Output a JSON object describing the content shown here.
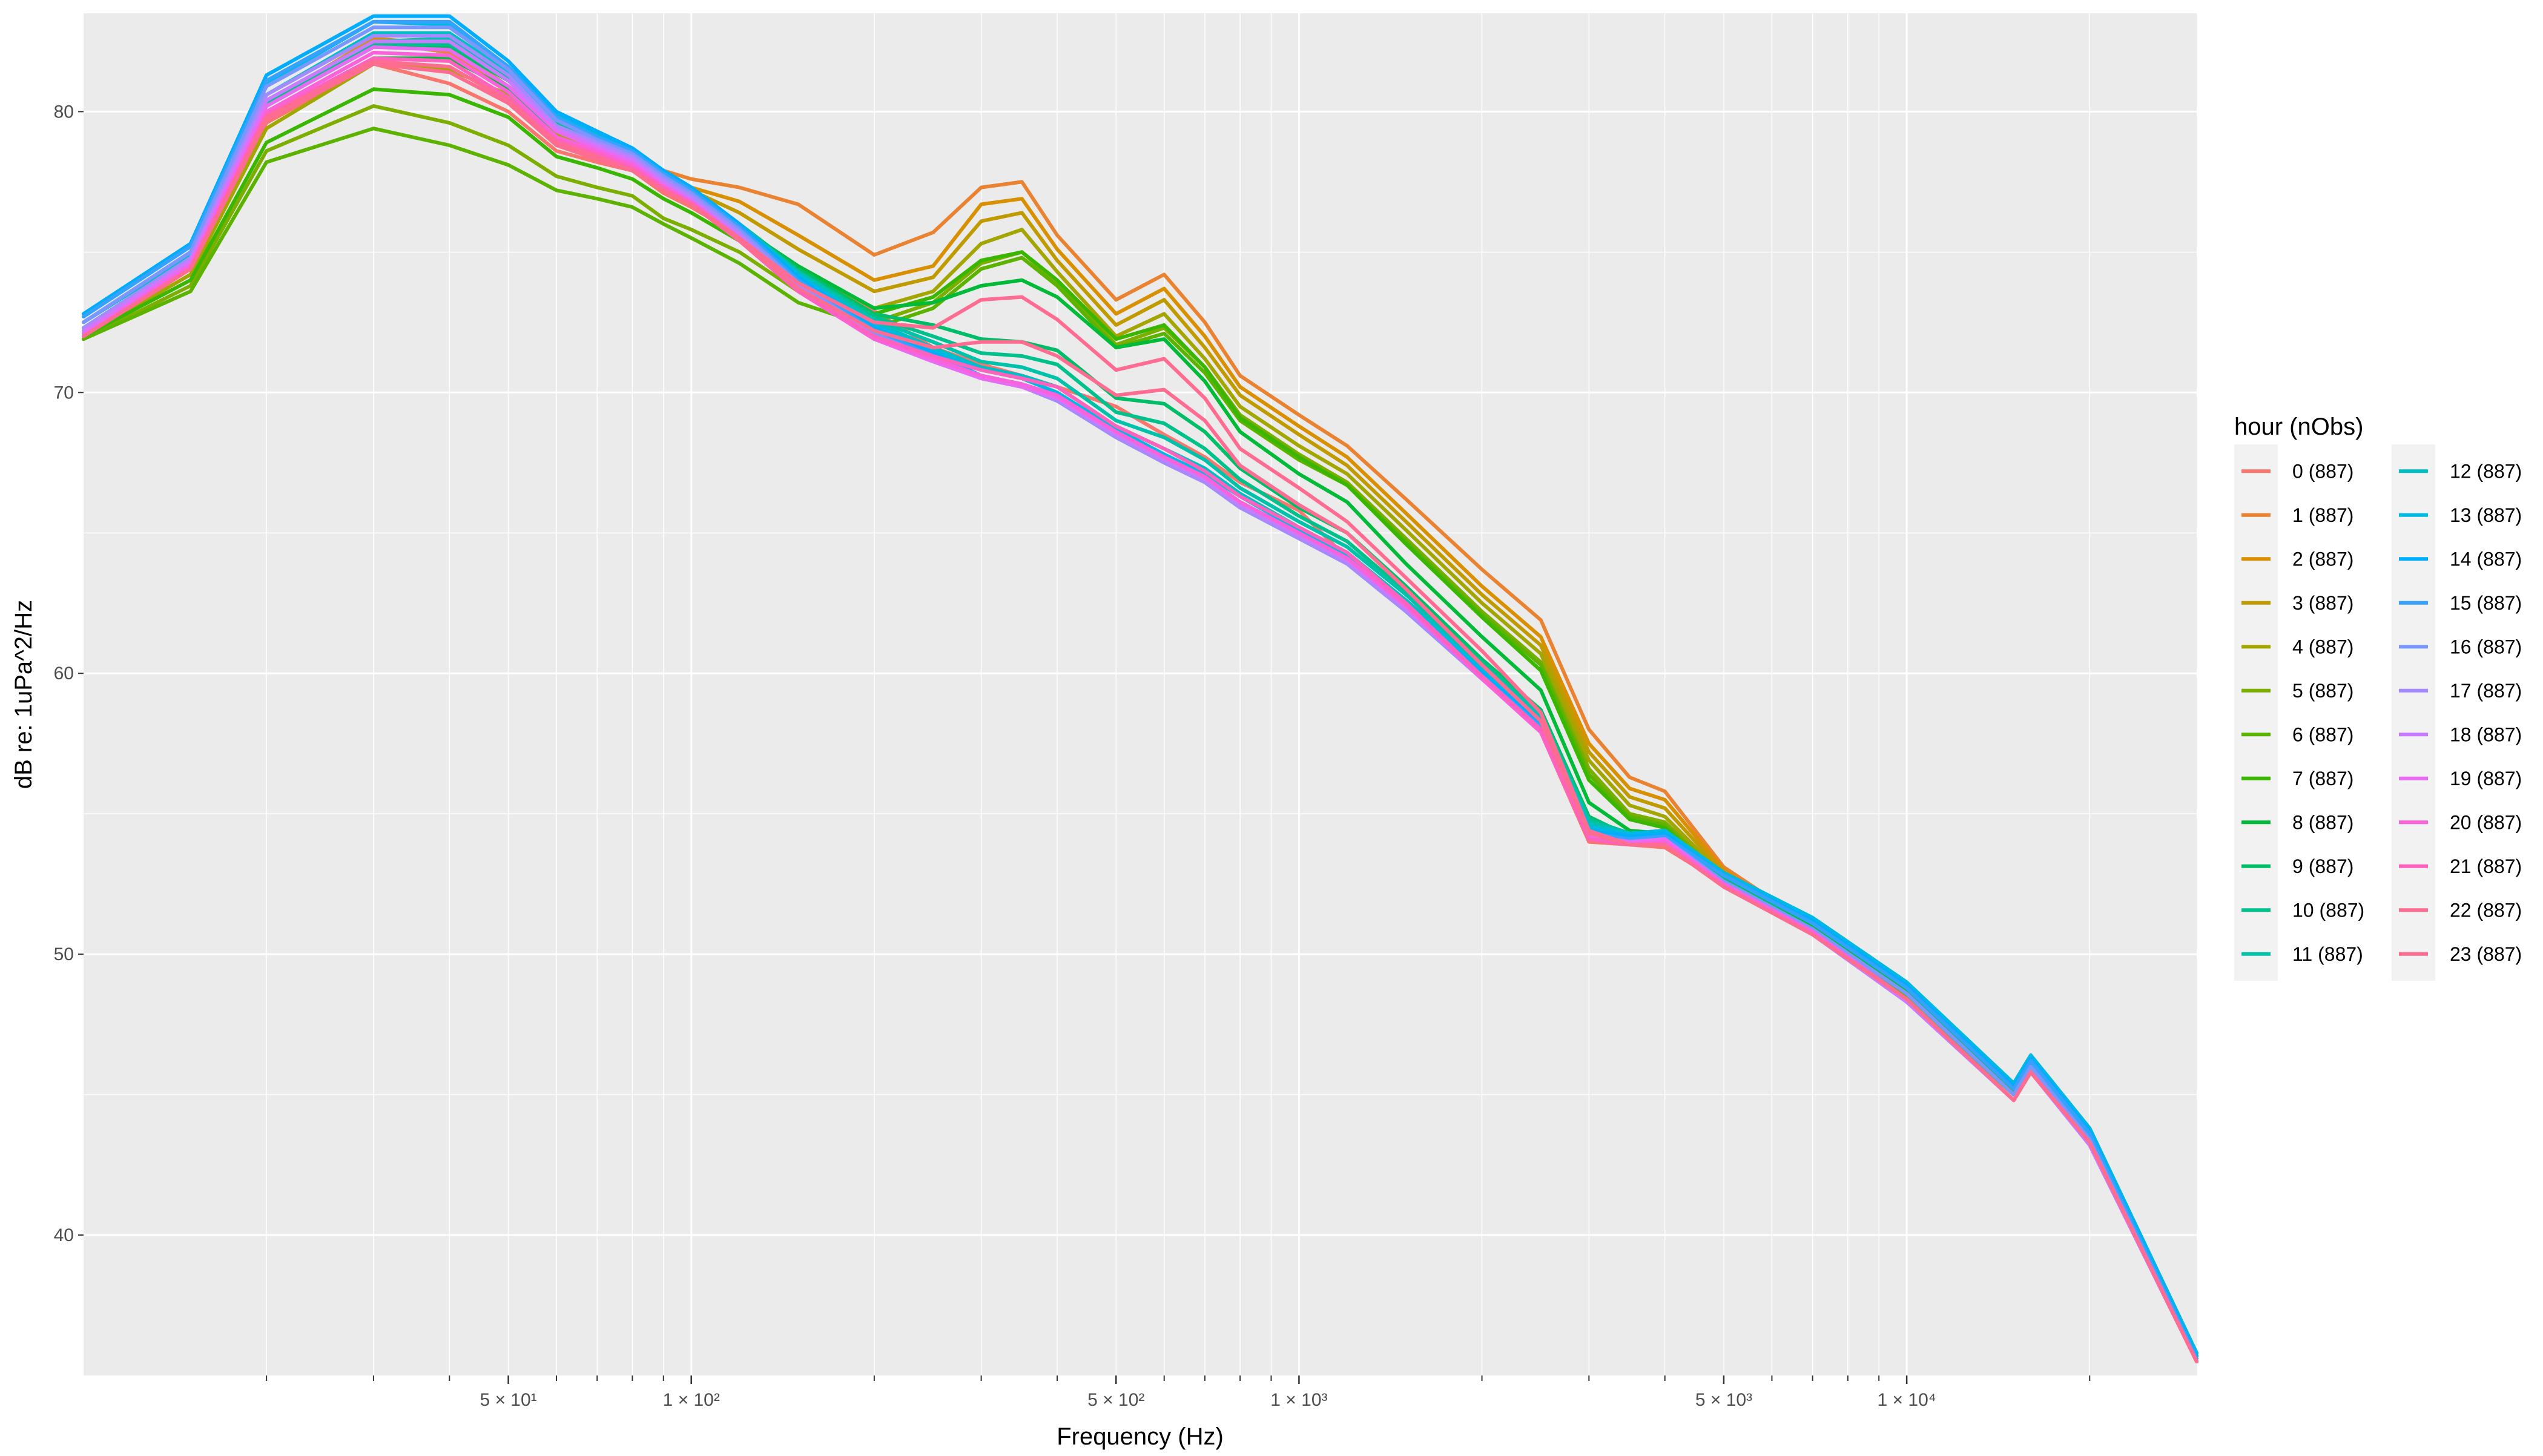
{
  "chart_data": {
    "type": "line",
    "xlabel": "Frequency (Hz)",
    "ylabel": "dB re: 1uPa^2/Hz",
    "x_scale": "log",
    "xlim": [
      10,
      30000
    ],
    "ylim": [
      35,
      83.5
    ],
    "x_ticks": [
      {
        "value": 50,
        "label": "5 × 10¹"
      },
      {
        "value": 100,
        "label": "1 × 10²"
      },
      {
        "value": 500,
        "label": "5 × 10²"
      },
      {
        "value": 1000,
        "label": "1 × 10³"
      },
      {
        "value": 5000,
        "label": "5 × 10³"
      },
      {
        "value": 10000,
        "label": "1 × 10⁴"
      }
    ],
    "y_ticks": [
      40,
      50,
      60,
      70,
      80
    ],
    "grid": true,
    "legend": {
      "title": "hour (nObs)",
      "placement": "right",
      "columns": 2
    },
    "series_frequencies": [
      10,
      15,
      20,
      30,
      40,
      50,
      60,
      70,
      80,
      90,
      100,
      120,
      150,
      200,
      250,
      300,
      350,
      400,
      500,
      600,
      700,
      800,
      1000,
      1200,
      1500,
      2000,
      2500,
      3000,
      3500,
      4000,
      5000,
      7000,
      10000,
      15000,
      16000,
      20000,
      30000
    ],
    "series": [
      {
        "name": "0 (887)",
        "color": "#F8766D",
        "values": [
          72.0,
          74.5,
          79.6,
          81.7,
          81.0,
          80.0,
          78.6,
          78.2,
          77.9,
          77.1,
          76.6,
          75.6,
          74.4,
          72.9,
          71.6,
          71.0,
          70.6,
          70.2,
          69.5,
          68.5,
          67.7,
          66.8,
          65.8,
          64.1,
          62.6,
          60.3,
          57.9,
          54.0,
          53.9,
          53.8,
          52.5,
          50.8,
          48.5,
          45.0,
          45.9,
          43.2,
          35.5
        ]
      },
      {
        "name": "1 (887)",
        "color": "#EA8331",
        "values": [
          72.1,
          74.8,
          80.3,
          82.5,
          82.1,
          80.9,
          79.5,
          78.9,
          78.5,
          77.9,
          77.6,
          77.3,
          76.7,
          74.9,
          75.7,
          77.3,
          77.5,
          75.6,
          73.3,
          74.2,
          72.5,
          70.6,
          69.2,
          68.1,
          66.2,
          63.7,
          61.9,
          58.0,
          56.3,
          55.8,
          53.1,
          51.0,
          48.5,
          45.0,
          46.0,
          43.4,
          35.5
        ]
      },
      {
        "name": "2 (887)",
        "color": "#D89000",
        "values": [
          72.1,
          74.8,
          80.3,
          82.6,
          82.4,
          81.1,
          79.6,
          79.0,
          78.5,
          77.8,
          77.3,
          76.8,
          75.6,
          74.0,
          74.5,
          76.7,
          76.9,
          75.1,
          72.8,
          73.7,
          72.0,
          70.2,
          68.8,
          67.7,
          65.7,
          63.1,
          61.3,
          57.5,
          55.9,
          55.5,
          53.0,
          50.9,
          48.5,
          45.0,
          46.0,
          43.4,
          35.5
        ]
      },
      {
        "name": "3 (887)",
        "color": "#C09B00",
        "values": [
          72.1,
          74.7,
          80.2,
          82.4,
          82.3,
          80.9,
          79.4,
          78.9,
          78.4,
          77.7,
          77.2,
          76.4,
          75.1,
          73.6,
          74.1,
          76.1,
          76.4,
          74.7,
          72.4,
          73.3,
          71.6,
          69.9,
          68.5,
          67.4,
          65.4,
          62.8,
          61.0,
          57.2,
          55.6,
          55.2,
          52.9,
          50.9,
          48.5,
          45.0,
          46.0,
          43.4,
          35.5
        ]
      },
      {
        "name": "4 (887)",
        "color": "#A3A500",
        "values": [
          72.0,
          74.2,
          79.4,
          81.7,
          81.5,
          80.6,
          79.2,
          78.6,
          78.0,
          77.3,
          76.7,
          75.7,
          74.4,
          73.0,
          73.6,
          75.3,
          75.8,
          74.3,
          72.0,
          72.8,
          71.2,
          69.5,
          68.1,
          67.1,
          65.1,
          62.5,
          60.7,
          56.9,
          55.3,
          54.9,
          52.8,
          50.8,
          48.5,
          45.0,
          46.0,
          43.3,
          35.5
        ]
      },
      {
        "name": "5 (887)",
        "color": "#7CAE00",
        "values": [
          71.9,
          73.8,
          78.6,
          80.2,
          79.6,
          78.8,
          77.7,
          77.3,
          77.0,
          76.2,
          75.8,
          75.0,
          73.6,
          72.5,
          73.2,
          74.6,
          75.0,
          73.9,
          71.7,
          72.3,
          70.9,
          69.2,
          67.8,
          66.8,
          64.8,
          62.2,
          60.4,
          56.6,
          55.0,
          54.7,
          52.7,
          50.8,
          48.5,
          45.0,
          46.0,
          43.3,
          35.5
        ]
      },
      {
        "name": "6 (887)",
        "color": "#5BB300",
        "values": [
          71.9,
          73.6,
          78.2,
          79.4,
          78.8,
          78.1,
          77.2,
          76.9,
          76.6,
          76.0,
          75.5,
          74.6,
          73.2,
          72.3,
          73.0,
          74.4,
          74.8,
          73.8,
          71.6,
          72.1,
          70.7,
          69.0,
          67.6,
          66.7,
          64.7,
          62.1,
          60.3,
          56.4,
          54.9,
          54.6,
          52.6,
          50.8,
          48.5,
          45.0,
          46.0,
          43.3,
          35.5
        ]
      },
      {
        "name": "7 (887)",
        "color": "#39B600",
        "values": [
          72.0,
          74.0,
          78.9,
          80.8,
          80.6,
          79.8,
          78.4,
          78.0,
          77.6,
          76.9,
          76.4,
          75.4,
          74.0,
          72.8,
          73.4,
          74.7,
          75.0,
          74.0,
          71.9,
          72.4,
          70.9,
          69.1,
          67.7,
          66.7,
          64.6,
          62.0,
          60.1,
          56.2,
          54.8,
          54.5,
          52.6,
          50.9,
          48.6,
          45.1,
          46.1,
          43.4,
          35.6
        ]
      },
      {
        "name": "8 (887)",
        "color": "#00BA38",
        "values": [
          72.1,
          74.4,
          79.8,
          81.9,
          81.9,
          80.8,
          79.3,
          78.8,
          78.3,
          77.6,
          77.0,
          75.9,
          74.5,
          73.0,
          73.2,
          73.8,
          74.0,
          73.4,
          71.6,
          71.9,
          70.4,
          68.6,
          67.1,
          66.1,
          63.9,
          61.3,
          59.4,
          55.4,
          54.4,
          54.3,
          52.6,
          51.0,
          48.7,
          45.2,
          46.2,
          43.5,
          35.6
        ]
      },
      {
        "name": "9 (887)",
        "color": "#00BE67",
        "values": [
          72.2,
          74.6,
          80.2,
          82.3,
          82.3,
          81.1,
          79.6,
          79.0,
          78.5,
          77.8,
          77.2,
          76.0,
          74.4,
          72.8,
          72.4,
          71.9,
          71.8,
          71.5,
          69.8,
          69.6,
          68.6,
          67.3,
          65.9,
          65.0,
          63.1,
          60.5,
          58.7,
          54.9,
          54.2,
          54.2,
          52.7,
          51.1,
          48.8,
          45.3,
          46.3,
          43.6,
          35.7
        ]
      },
      {
        "name": "10 (887)",
        "color": "#00C08B",
        "values": [
          72.2,
          74.6,
          80.3,
          82.4,
          82.4,
          81.2,
          79.6,
          79.0,
          78.5,
          77.8,
          77.2,
          76.0,
          74.3,
          72.7,
          72.0,
          71.4,
          71.3,
          71.0,
          69.3,
          68.9,
          68.0,
          66.9,
          65.6,
          64.7,
          62.9,
          60.4,
          58.6,
          54.8,
          54.3,
          54.3,
          52.8,
          51.2,
          48.9,
          45.3,
          46.3,
          43.7,
          35.7
        ]
      },
      {
        "name": "11 (887)",
        "color": "#00C1A9",
        "values": [
          72.3,
          74.7,
          80.4,
          82.5,
          82.6,
          81.3,
          79.7,
          79.1,
          78.6,
          77.9,
          77.3,
          76.0,
          74.3,
          72.6,
          71.8,
          71.1,
          70.9,
          70.5,
          69.0,
          68.4,
          67.6,
          66.6,
          65.4,
          64.5,
          62.8,
          60.3,
          58.5,
          54.7,
          54.3,
          54.4,
          52.9,
          51.3,
          49.0,
          45.4,
          46.4,
          43.8,
          35.8
        ]
      },
      {
        "name": "12 (887)",
        "color": "#00BFC4",
        "values": [
          72.5,
          74.9,
          80.6,
          82.8,
          82.8,
          81.4,
          79.8,
          79.1,
          78.6,
          77.9,
          77.3,
          76.0,
          74.2,
          72.5,
          71.6,
          70.9,
          70.6,
          70.2,
          68.8,
          68.0,
          67.3,
          66.4,
          65.2,
          64.3,
          62.6,
          60.2,
          58.4,
          54.6,
          54.3,
          54.4,
          52.9,
          51.3,
          49.0,
          45.4,
          46.4,
          43.8,
          35.8
        ]
      },
      {
        "name": "13 (887)",
        "color": "#00B9E3",
        "values": [
          72.7,
          75.2,
          81.0,
          83.2,
          83.1,
          81.6,
          79.9,
          79.2,
          78.7,
          77.9,
          77.3,
          76.0,
          74.2,
          72.4,
          71.5,
          70.8,
          70.5,
          70.0,
          68.7,
          67.8,
          67.1,
          66.3,
          65.1,
          64.2,
          62.5,
          60.1,
          58.3,
          54.5,
          54.3,
          54.4,
          52.9,
          51.3,
          49.0,
          45.4,
          46.4,
          43.8,
          35.8
        ]
      },
      {
        "name": "14 (887)",
        "color": "#00ADFA",
        "values": [
          72.8,
          75.3,
          81.3,
          83.4,
          83.4,
          81.8,
          80.0,
          79.3,
          78.7,
          77.9,
          77.3,
          76.0,
          74.1,
          72.3,
          71.4,
          70.6,
          70.3,
          69.9,
          68.6,
          67.7,
          67.0,
          66.1,
          65.0,
          64.1,
          62.4,
          60.0,
          58.2,
          54.4,
          54.2,
          54.3,
          52.8,
          51.2,
          48.9,
          45.3,
          46.3,
          43.7,
          35.7
        ]
      },
      {
        "name": "15 (887)",
        "color": "#35A2FF",
        "values": [
          72.7,
          75.2,
          81.1,
          83.2,
          83.2,
          81.6,
          79.8,
          79.1,
          78.6,
          77.8,
          77.2,
          75.9,
          74.0,
          72.2,
          71.3,
          70.6,
          70.3,
          69.8,
          68.5,
          67.6,
          66.9,
          66.0,
          64.9,
          64.0,
          62.3,
          59.9,
          58.1,
          54.3,
          54.1,
          54.2,
          52.8,
          51.1,
          48.8,
          45.2,
          46.2,
          43.6,
          35.6
        ]
      },
      {
        "name": "16 (887)",
        "color": "#7997FF",
        "values": [
          72.5,
          75.0,
          80.9,
          83.0,
          83.0,
          81.5,
          79.7,
          79.0,
          78.5,
          77.7,
          77.1,
          75.8,
          73.9,
          72.1,
          71.2,
          70.5,
          70.2,
          69.7,
          68.4,
          67.5,
          66.8,
          65.9,
          64.8,
          63.9,
          62.2,
          59.8,
          58.0,
          54.2,
          54.0,
          54.1,
          52.6,
          50.9,
          48.6,
          45.0,
          46.0,
          43.4,
          35.5
        ]
      },
      {
        "name": "17 (887)",
        "color": "#A58AFF",
        "values": [
          72.3,
          74.8,
          80.6,
          82.7,
          82.7,
          81.3,
          79.5,
          78.9,
          78.4,
          77.6,
          77.0,
          75.7,
          73.8,
          72.0,
          71.2,
          70.5,
          70.2,
          69.7,
          68.4,
          67.5,
          66.8,
          65.9,
          64.8,
          63.9,
          62.2,
          59.8,
          58.0,
          54.2,
          53.9,
          53.9,
          52.4,
          50.7,
          48.3,
          44.8,
          45.8,
          43.3,
          35.5
        ]
      },
      {
        "name": "18 (887)",
        "color": "#C77CFF",
        "values": [
          72.2,
          74.7,
          80.4,
          82.5,
          82.5,
          81.1,
          79.4,
          78.8,
          78.3,
          77.5,
          76.9,
          75.6,
          73.7,
          72.0,
          71.2,
          70.5,
          70.2,
          69.8,
          68.5,
          67.6,
          66.9,
          66.0,
          64.9,
          64.0,
          62.3,
          59.9,
          58.0,
          54.2,
          54.0,
          54.0,
          52.4,
          50.7,
          48.3,
          44.8,
          45.8,
          43.2,
          35.5
        ]
      },
      {
        "name": "19 (887)",
        "color": "#E76BF3",
        "values": [
          72.1,
          74.6,
          80.2,
          82.3,
          82.2,
          80.9,
          79.3,
          78.7,
          78.2,
          77.4,
          76.8,
          75.5,
          73.6,
          71.9,
          71.1,
          70.5,
          70.2,
          69.8,
          68.6,
          67.7,
          67.0,
          66.1,
          65.0,
          64.1,
          62.4,
          59.9,
          58.0,
          54.2,
          54.0,
          54.1,
          52.5,
          50.8,
          48.4,
          44.8,
          45.8,
          43.3,
          35.5
        ]
      },
      {
        "name": "20 (887)",
        "color": "#FA62DB",
        "values": [
          72.0,
          74.5,
          80.0,
          82.1,
          82.0,
          80.7,
          79.1,
          78.6,
          78.1,
          77.3,
          76.8,
          75.5,
          73.6,
          71.9,
          71.2,
          70.6,
          70.3,
          69.9,
          68.6,
          67.7,
          67.0,
          66.1,
          65.0,
          64.1,
          62.4,
          59.8,
          57.9,
          54.1,
          53.9,
          54.0,
          52.5,
          50.8,
          48.4,
          44.8,
          45.8,
          43.3,
          35.5
        ]
      },
      {
        "name": "21 (887)",
        "color": "#FF62BC",
        "values": [
          72.0,
          74.4,
          79.9,
          81.9,
          81.8,
          80.5,
          79.0,
          78.5,
          78.0,
          77.3,
          76.7,
          75.4,
          73.6,
          72.0,
          71.3,
          70.8,
          70.5,
          70.2,
          68.8,
          68.0,
          67.2,
          66.3,
          65.2,
          64.3,
          62.5,
          59.9,
          58.0,
          54.1,
          53.9,
          53.9,
          52.4,
          50.7,
          48.4,
          44.8,
          45.8,
          43.3,
          35.5
        ]
      },
      {
        "name": "22 (887)",
        "color": "#FF6C91",
        "values": [
          72.0,
          74.4,
          79.8,
          81.8,
          81.6,
          80.4,
          78.9,
          78.4,
          77.9,
          77.2,
          76.7,
          75.4,
          73.7,
          72.2,
          71.6,
          71.8,
          71.8,
          71.3,
          69.9,
          70.1,
          69.0,
          67.4,
          66.0,
          65.0,
          63.0,
          60.3,
          58.3,
          54.3,
          53.9,
          53.9,
          52.4,
          50.7,
          48.4,
          44.8,
          45.8,
          43.3,
          35.5
        ]
      },
      {
        "name": "23 (887)",
        "color": "#FF6C91",
        "values": [
          72.0,
          74.4,
          79.7,
          81.7,
          81.4,
          80.3,
          78.8,
          78.3,
          77.9,
          77.2,
          76.7,
          75.5,
          73.9,
          72.5,
          72.3,
          73.3,
          73.4,
          72.6,
          70.8,
          71.2,
          69.8,
          68.0,
          66.6,
          65.4,
          63.4,
          60.8,
          58.6,
          54.4,
          53.9,
          53.9,
          52.4,
          50.7,
          48.4,
          44.8,
          45.8,
          43.3,
          35.5
        ]
      }
    ]
  }
}
